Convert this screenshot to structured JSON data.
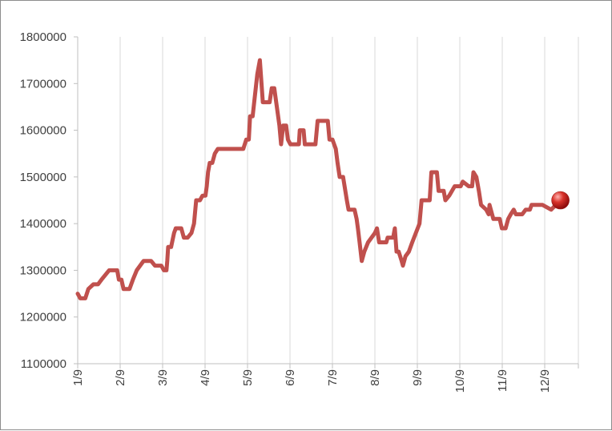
{
  "chart_data": {
    "type": "line",
    "title": "",
    "xlabel": "",
    "ylabel": "",
    "ylim": [
      1100000,
      1800000
    ],
    "yticks": [
      1100000,
      1200000,
      1300000,
      1400000,
      1500000,
      1600000,
      1700000,
      1800000
    ],
    "xlim": [
      0,
      11.6
    ],
    "xticks": [
      "1/9",
      "2/9",
      "3/9",
      "4/9",
      "5/9",
      "6/9",
      "7/9",
      "8/9",
      "9/9",
      "10/9",
      "11/9",
      "12/9"
    ],
    "grid": "vertical",
    "legend": "none",
    "colors": {
      "line": "#c0504d",
      "marker": "#c0504d",
      "grid": "#d9d9d9",
      "axis": "#bfbfbf",
      "text": "#404040"
    },
    "series": [
      {
        "values": [
          [
            0.0,
            1250000
          ],
          [
            0.06,
            1240000
          ],
          [
            0.18,
            1240000
          ],
          [
            0.25,
            1260000
          ],
          [
            0.37,
            1270000
          ],
          [
            0.48,
            1270000
          ],
          [
            0.56,
            1280000
          ],
          [
            0.65,
            1290000
          ],
          [
            0.74,
            1300000
          ],
          [
            0.93,
            1300000
          ],
          [
            0.97,
            1280000
          ],
          [
            1.03,
            1280000
          ],
          [
            1.08,
            1260000
          ],
          [
            1.22,
            1260000
          ],
          [
            1.3,
            1280000
          ],
          [
            1.39,
            1300000
          ],
          [
            1.47,
            1310000
          ],
          [
            1.55,
            1320000
          ],
          [
            1.73,
            1320000
          ],
          [
            1.82,
            1310000
          ],
          [
            1.97,
            1310000
          ],
          [
            2.03,
            1300000
          ],
          [
            2.09,
            1300000
          ],
          [
            2.11,
            1320000
          ],
          [
            2.13,
            1350000
          ],
          [
            2.2,
            1350000
          ],
          [
            2.27,
            1380000
          ],
          [
            2.31,
            1390000
          ],
          [
            2.44,
            1390000
          ],
          [
            2.5,
            1370000
          ],
          [
            2.59,
            1370000
          ],
          [
            2.68,
            1380000
          ],
          [
            2.74,
            1400000
          ],
          [
            2.79,
            1450000
          ],
          [
            2.88,
            1450000
          ],
          [
            2.94,
            1460000
          ],
          [
            3.01,
            1460000
          ],
          [
            3.04,
            1480000
          ],
          [
            3.07,
            1510000
          ],
          [
            3.11,
            1530000
          ],
          [
            3.17,
            1530000
          ],
          [
            3.23,
            1550000
          ],
          [
            3.3,
            1560000
          ],
          [
            3.9,
            1560000
          ],
          [
            3.97,
            1580000
          ],
          [
            4.03,
            1580000
          ],
          [
            4.06,
            1630000
          ],
          [
            4.12,
            1630000
          ],
          [
            4.23,
            1720000
          ],
          [
            4.29,
            1750000
          ],
          [
            4.36,
            1660000
          ],
          [
            4.52,
            1660000
          ],
          [
            4.57,
            1690000
          ],
          [
            4.63,
            1690000
          ],
          [
            4.69,
            1650000
          ],
          [
            4.75,
            1610000
          ],
          [
            4.79,
            1570000
          ],
          [
            4.84,
            1610000
          ],
          [
            4.91,
            1610000
          ],
          [
            4.95,
            1580000
          ],
          [
            5.01,
            1570000
          ],
          [
            5.21,
            1570000
          ],
          [
            5.23,
            1600000
          ],
          [
            5.32,
            1600000
          ],
          [
            5.35,
            1570000
          ],
          [
            5.6,
            1570000
          ],
          [
            5.65,
            1620000
          ],
          [
            5.89,
            1620000
          ],
          [
            5.93,
            1580000
          ],
          [
            6.0,
            1580000
          ],
          [
            6.08,
            1560000
          ],
          [
            6.12,
            1530000
          ],
          [
            6.17,
            1500000
          ],
          [
            6.25,
            1500000
          ],
          [
            6.34,
            1450000
          ],
          [
            6.38,
            1430000
          ],
          [
            6.52,
            1430000
          ],
          [
            6.57,
            1410000
          ],
          [
            6.6,
            1390000
          ],
          [
            6.64,
            1360000
          ],
          [
            6.69,
            1320000
          ],
          [
            6.75,
            1340000
          ],
          [
            6.84,
            1360000
          ],
          [
            6.92,
            1370000
          ],
          [
            7.0,
            1380000
          ],
          [
            7.05,
            1390000
          ],
          [
            7.1,
            1360000
          ],
          [
            7.27,
            1360000
          ],
          [
            7.3,
            1370000
          ],
          [
            7.43,
            1370000
          ],
          [
            7.47,
            1390000
          ],
          [
            7.51,
            1340000
          ],
          [
            7.56,
            1340000
          ],
          [
            7.63,
            1320000
          ],
          [
            7.66,
            1310000
          ],
          [
            7.72,
            1330000
          ],
          [
            7.8,
            1340000
          ],
          [
            7.88,
            1360000
          ],
          [
            8.05,
            1400000
          ],
          [
            8.1,
            1450000
          ],
          [
            8.29,
            1450000
          ],
          [
            8.33,
            1510000
          ],
          [
            8.46,
            1510000
          ],
          [
            8.5,
            1470000
          ],
          [
            8.62,
            1470000
          ],
          [
            8.66,
            1450000
          ],
          [
            8.75,
            1460000
          ],
          [
            8.88,
            1480000
          ],
          [
            9.02,
            1480000
          ],
          [
            9.07,
            1490000
          ],
          [
            9.21,
            1480000
          ],
          [
            9.29,
            1480000
          ],
          [
            9.32,
            1510000
          ],
          [
            9.39,
            1500000
          ],
          [
            9.45,
            1470000
          ],
          [
            9.5,
            1440000
          ],
          [
            9.62,
            1430000
          ],
          [
            9.68,
            1420000
          ],
          [
            9.7,
            1440000
          ],
          [
            9.79,
            1410000
          ],
          [
            9.94,
            1410000
          ],
          [
            9.99,
            1390000
          ],
          [
            10.08,
            1390000
          ],
          [
            10.14,
            1410000
          ],
          [
            10.2,
            1420000
          ],
          [
            10.27,
            1430000
          ],
          [
            10.32,
            1420000
          ],
          [
            10.47,
            1420000
          ],
          [
            10.55,
            1430000
          ],
          [
            10.65,
            1430000
          ],
          [
            10.69,
            1440000
          ],
          [
            10.95,
            1440000
          ],
          [
            11.15,
            1430000
          ],
          [
            11.37,
            1450000
          ]
        ]
      }
    ]
  }
}
